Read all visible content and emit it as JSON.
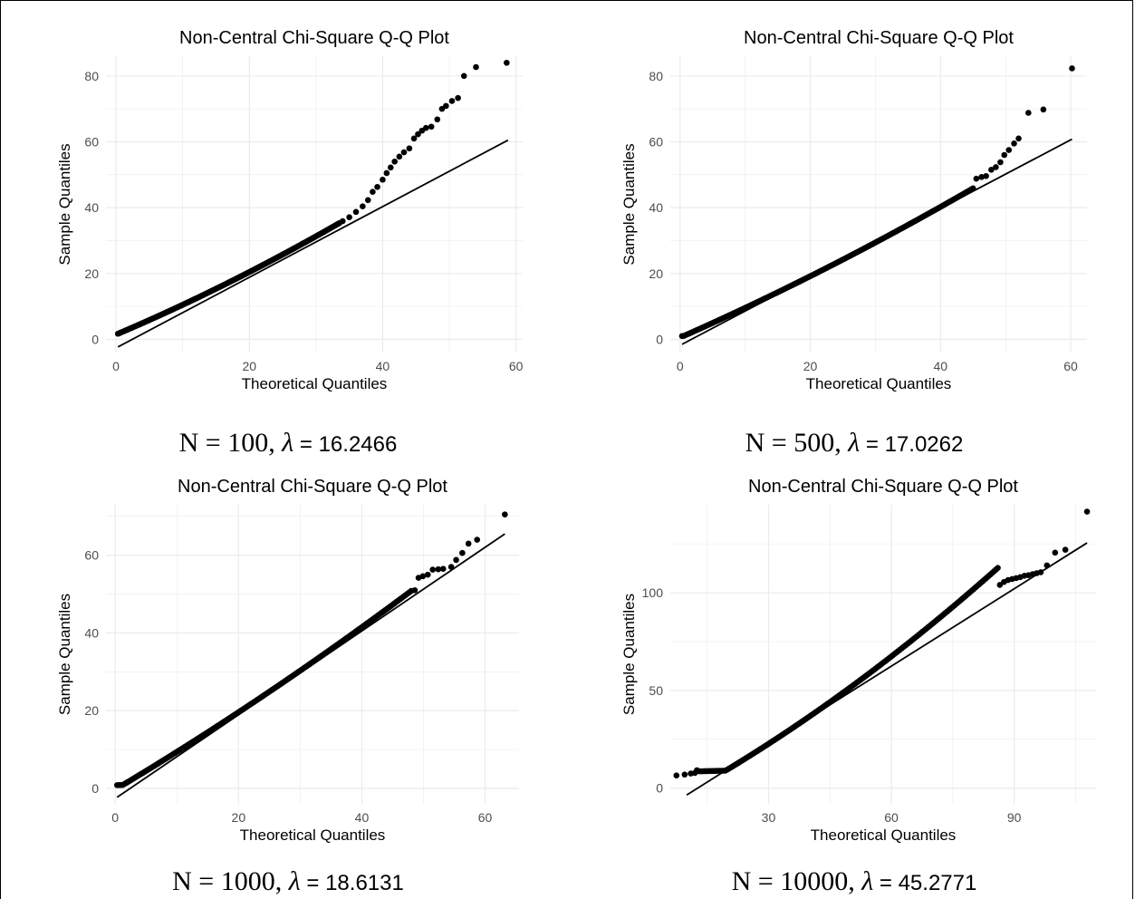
{
  "chart_data": [
    {
      "type": "scatter",
      "title": "Non-Central Chi-Square Q-Q Plot",
      "xlabel": "Theoretical Quantiles",
      "ylabel": "Sample Quantiles",
      "xlim": [
        -1.5,
        61
      ],
      "ylim": [
        -4,
        86
      ],
      "xticks": [
        0,
        20,
        40,
        60
      ],
      "yticks": [
        0,
        20,
        40,
        60,
        80
      ],
      "grid": true,
      "reference_line": {
        "x": [
          0.3,
          58.8
        ],
        "y": [
          -2.3,
          60.5
        ]
      },
      "curve": {
        "tmin": 0.3,
        "tmax": 33.5,
        "ymin": 1.0,
        "kink": 30,
        "slope": 1.13,
        "offset": -2.6,
        "amp": 0.0045
      },
      "tail": [
        [
          34,
          35.9
        ],
        [
          35,
          37.1
        ],
        [
          36,
          38.7
        ],
        [
          37,
          40.4
        ],
        [
          37.8,
          42.3
        ],
        [
          38.5,
          44.8
        ],
        [
          39.2,
          46.3
        ],
        [
          40,
          48.5
        ],
        [
          40.6,
          50.5
        ],
        [
          41.2,
          52.2
        ],
        [
          41.8,
          54.0
        ],
        [
          42.5,
          55.5
        ],
        [
          43.2,
          56.8
        ],
        [
          44,
          58.0
        ],
        [
          44.7,
          61.0
        ],
        [
          45.3,
          62.3
        ],
        [
          45.9,
          63.4
        ],
        [
          46.5,
          64.2
        ],
        [
          47.3,
          64.6
        ],
        [
          48.2,
          66.8
        ],
        [
          48.9,
          70.0
        ],
        [
          49.5,
          70.9
        ],
        [
          50.4,
          72.4
        ],
        [
          51.3,
          73.3
        ],
        [
          52.2,
          80.0
        ],
        [
          54.0,
          82.7
        ],
        [
          58.6,
          84.0
        ]
      ],
      "caption": {
        "n_text": "N = 100, ",
        "lambda_symbol": "λ",
        "lambda_value": " = 16.2466"
      }
    },
    {
      "type": "scatter",
      "title": "Non-Central Chi-Square Q-Q Plot",
      "xlabel": "Theoretical Quantiles",
      "ylabel": "Sample Quantiles",
      "xlim": [
        -1.5,
        62.5
      ],
      "ylim": [
        -4,
        86
      ],
      "xticks": [
        0,
        20,
        40,
        60
      ],
      "yticks": [
        0,
        20,
        40,
        60,
        80
      ],
      "grid": true,
      "reference_line": {
        "x": [
          0.3,
          60.2
        ],
        "y": [
          -1.5,
          60.8
        ]
      },
      "curve": {
        "tmin": 0.3,
        "tmax": 45,
        "ymin": 1.0,
        "kink": 28,
        "slope": 1.04,
        "offset": -1.8,
        "amp": 0.003
      },
      "tail": [
        [
          45.5,
          48.8
        ],
        [
          46.3,
          49.3
        ],
        [
          47.0,
          49.6
        ],
        [
          47.8,
          51.5
        ],
        [
          48.5,
          52.3
        ],
        [
          49.2,
          53.8
        ],
        [
          49.8,
          56.0
        ],
        [
          50.5,
          57.5
        ],
        [
          51.3,
          59.5
        ],
        [
          52.0,
          61.0
        ],
        [
          53.5,
          68.8
        ],
        [
          55.8,
          69.8
        ],
        [
          60.2,
          82.3
        ]
      ],
      "caption": {
        "n_text": "N = 500, ",
        "lambda_symbol": "λ",
        "lambda_value": " = 17.0262"
      }
    },
    {
      "type": "scatter",
      "title": "Non-Central Chi-Square Q-Q Plot",
      "xlabel": "Theoretical Quantiles",
      "ylabel": "Sample Quantiles",
      "xlim": [
        -1.5,
        65.5
      ],
      "ylim": [
        -4,
        73
      ],
      "xticks": [
        0,
        20,
        40,
        60
      ],
      "yticks": [
        0,
        20,
        40,
        60
      ],
      "grid": true,
      "reference_line": {
        "x": [
          0.3,
          63.2
        ],
        "y": [
          -2.3,
          65.5
        ]
      },
      "curve": {
        "tmin": 0.3,
        "tmax": 48,
        "ymin": 0.8,
        "kink": 26,
        "slope": 1.075,
        "offset": -2.0,
        "amp": 0.0025
      },
      "tail": [
        [
          48.6,
          51.0
        ],
        [
          49.2,
          54.2
        ],
        [
          49.9,
          54.6
        ],
        [
          50.7,
          55.0
        ],
        [
          51.5,
          56.3
        ],
        [
          52.4,
          56.4
        ],
        [
          53.2,
          56.5
        ],
        [
          54.5,
          57.0
        ],
        [
          55.3,
          58.8
        ],
        [
          56.3,
          60.6
        ],
        [
          57.3,
          63.0
        ],
        [
          58.7,
          64.0
        ],
        [
          63.2,
          70.5
        ]
      ],
      "caption": {
        "n_text": "N = 1000, ",
        "lambda_symbol": "λ",
        "lambda_value": " = 18.6131"
      }
    },
    {
      "type": "scatter",
      "title": "Non-Central Chi-Square Q-Q Plot",
      "xlabel": "Theoretical Quantiles",
      "ylabel": "Sample Quantiles",
      "xlim": [
        6,
        110
      ],
      "ylim": [
        -8,
        145
      ],
      "xticks": [
        30,
        60,
        90
      ],
      "yticks": [
        0,
        50,
        100
      ],
      "grid": true,
      "reference_line": {
        "x": [
          10,
          107.8
        ],
        "y": [
          -3.5,
          125.5
        ]
      },
      "curve": {
        "tmin": 13,
        "tmax": 86,
        "ymin": 8,
        "kink": 25,
        "slope": 1.31,
        "offset": -16.7,
        "amp": 0.0045
      },
      "tail": [
        [
          7.5,
          6.5
        ],
        [
          9.5,
          7.0
        ],
        [
          11,
          7.5
        ],
        [
          12,
          7.8
        ],
        [
          12.5,
          9.2
        ],
        [
          86.5,
          104.0
        ],
        [
          87.5,
          105.5
        ],
        [
          88.5,
          106.5
        ],
        [
          89.5,
          107.0
        ],
        [
          90.5,
          107.5
        ],
        [
          91.5,
          108.0
        ],
        [
          92.5,
          108.7
        ],
        [
          93.5,
          109.0
        ],
        [
          94.5,
          109.5
        ],
        [
          95.5,
          110.0
        ],
        [
          96.5,
          110.5
        ],
        [
          98,
          114
        ],
        [
          100,
          120.5
        ],
        [
          102.5,
          122.0
        ],
        [
          107.8,
          141.5
        ]
      ],
      "caption": {
        "n_text": "N = 10000, ",
        "lambda_symbol": "λ",
        "lambda_value": " = 45.2771"
      }
    }
  ]
}
